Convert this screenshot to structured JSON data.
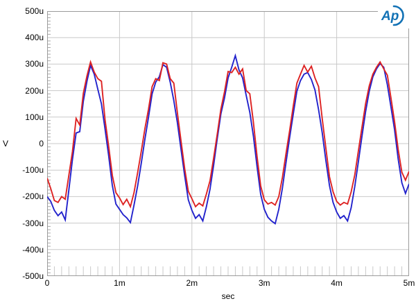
{
  "header": {
    "logo_text": "Ap"
  },
  "chart_data": {
    "type": "line",
    "title": "",
    "xlabel": "sec",
    "ylabel": "V",
    "xlim": [
      0,
      5
    ],
    "ylim": [
      -500,
      500
    ],
    "x_unit": "ms",
    "y_unit": "uV",
    "grid": true,
    "legend_position": "none",
    "xticks": [
      {
        "t": 0,
        "label": "0"
      },
      {
        "t": 1,
        "label": "1m"
      },
      {
        "t": 2,
        "label": "2m"
      },
      {
        "t": 3,
        "label": "3m"
      },
      {
        "t": 4,
        "label": "4m"
      },
      {
        "t": 5,
        "label": "5m"
      }
    ],
    "yticks": [
      {
        "v": 500,
        "label": "500u"
      },
      {
        "v": 400,
        "label": "400u"
      },
      {
        "v": 300,
        "label": "300u"
      },
      {
        "v": 200,
        "label": "200u"
      },
      {
        "v": 100,
        "label": "100u"
      },
      {
        "v": 0,
        "label": "0"
      },
      {
        "v": -100,
        "label": "-100u"
      },
      {
        "v": -200,
        "label": "-200u"
      },
      {
        "v": -300,
        "label": "-300u"
      },
      {
        "v": -400,
        "label": "-400u"
      },
      {
        "v": -500,
        "label": "-500u"
      }
    ],
    "x_minor_step": 0.1,
    "y_minor_step": 12.5,
    "colors": {
      "grid": "#c9c9c9",
      "border": "#9b9b9b",
      "y_tick": "#a8a8a8",
      "x_tick": "#c9c9c9",
      "text": "#000000",
      "logo_blue": "#1171b5",
      "background": "#ffffff"
    },
    "x": [
      0,
      0.05,
      0.1,
      0.15,
      0.2,
      0.25,
      0.3,
      0.35,
      0.4,
      0.45,
      0.5,
      0.55,
      0.6,
      0.65,
      0.7,
      0.75,
      0.8,
      0.85,
      0.9,
      0.95,
      1,
      1.05,
      1.1,
      1.15,
      1.2,
      1.25,
      1.3,
      1.35,
      1.4,
      1.45,
      1.5,
      1.55,
      1.6,
      1.65,
      1.7,
      1.75,
      1.8,
      1.85,
      1.9,
      1.95,
      2,
      2.05,
      2.1,
      2.15,
      2.2,
      2.25,
      2.3,
      2.35,
      2.4,
      2.45,
      2.5,
      2.55,
      2.6,
      2.65,
      2.7,
      2.75,
      2.8,
      2.85,
      2.9,
      2.95,
      3,
      3.05,
      3.1,
      3.15,
      3.2,
      3.25,
      3.3,
      3.35,
      3.4,
      3.45,
      3.5,
      3.55,
      3.6,
      3.65,
      3.7,
      3.75,
      3.8,
      3.85,
      3.9,
      3.95,
      4,
      4.05,
      4.1,
      4.15,
      4.2,
      4.25,
      4.3,
      4.35,
      4.4,
      4.45,
      4.5,
      4.55,
      4.6,
      4.65,
      4.7,
      4.75,
      4.8,
      4.85,
      4.9,
      4.95,
      5
    ],
    "series": [
      {
        "name": "blue-trace",
        "color": "#2222cc",
        "values": [
          -200,
          -218,
          -252,
          -272,
          -258,
          -288,
          -175,
          -60,
          40,
          45,
          160,
          235,
          295,
          262,
          205,
          150,
          55,
          -45,
          -158,
          -228,
          -248,
          -268,
          -280,
          -298,
          -232,
          -160,
          -75,
          15,
          100,
          188,
          232,
          252,
          298,
          288,
          232,
          162,
          78,
          -22,
          -122,
          -212,
          -252,
          -282,
          -268,
          -292,
          -238,
          -172,
          -82,
          18,
          112,
          172,
          248,
          288,
          332,
          278,
          248,
          182,
          118,
          28,
          -88,
          -192,
          -248,
          -278,
          -292,
          -302,
          -248,
          -168,
          -72,
          22,
          112,
          198,
          238,
          262,
          268,
          242,
          202,
          128,
          42,
          -62,
          -158,
          -222,
          -258,
          -282,
          -272,
          -292,
          -242,
          -162,
          -68,
          28,
          122,
          198,
          252,
          282,
          302,
          288,
          222,
          138,
          52,
          -58,
          -148,
          -188,
          -152
        ]
      },
      {
        "name": "red-trace",
        "color": "#dd2222",
        "values": [
          -130,
          -170,
          -215,
          -222,
          -200,
          -210,
          -120,
          -30,
          95,
          70,
          190,
          255,
          308,
          270,
          245,
          235,
          90,
          -10,
          -120,
          -185,
          -205,
          -230,
          -210,
          -238,
          -185,
          -110,
          -30,
          55,
          130,
          215,
          245,
          238,
          305,
          300,
          245,
          228,
          115,
          10,
          -95,
          -180,
          -208,
          -238,
          -225,
          -235,
          -190,
          -140,
          -55,
          35,
          130,
          195,
          272,
          268,
          288,
          262,
          282,
          200,
          188,
          80,
          -50,
          -160,
          -212,
          -228,
          -222,
          -232,
          -200,
          -128,
          -38,
          48,
          142,
          228,
          262,
          295,
          270,
          292,
          248,
          215,
          95,
          -15,
          -125,
          -182,
          -218,
          -232,
          -222,
          -228,
          -182,
          -118,
          -28,
          62,
          152,
          218,
          262,
          288,
          308,
          282,
          258,
          172,
          82,
          -22,
          -108,
          -138,
          -105
        ]
      }
    ]
  }
}
